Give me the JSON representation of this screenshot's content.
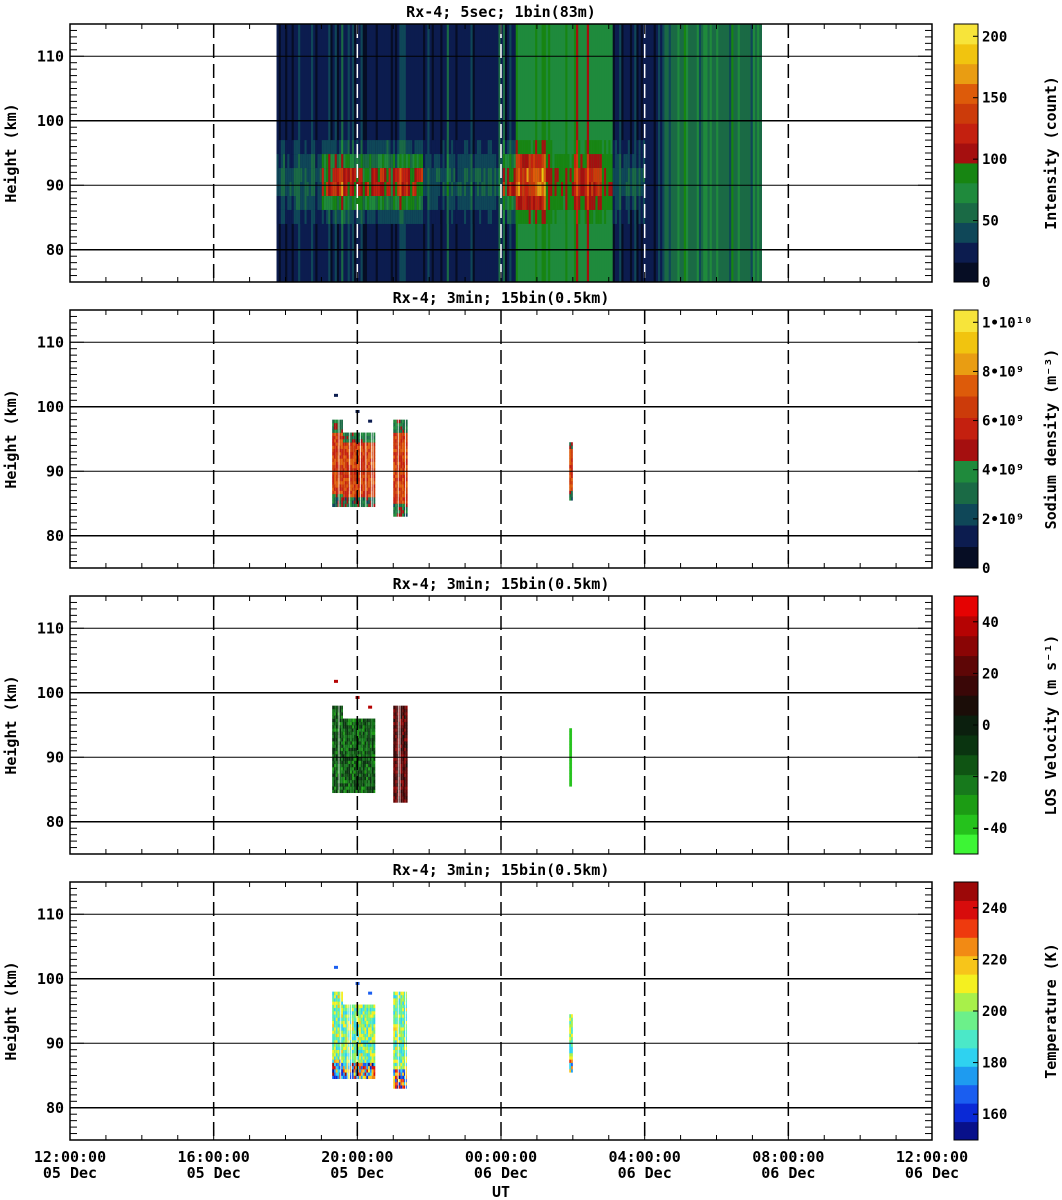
{
  "figure": {
    "xlabel": "UT"
  },
  "chart_data": [
    {
      "type": "heatmap",
      "title": "Rx-4;  5sec; 1bin(83m)",
      "xlabel": "UT",
      "ylabel": "Height (km)",
      "x_range_hours": [
        0,
        24
      ],
      "ylim": [
        75,
        115
      ],
      "x_ticks_labels": [
        [
          "12:00:00",
          "05 Dec"
        ],
        [
          "16:00:00",
          "05 Dec"
        ],
        [
          "20:00:00",
          "05 Dec"
        ],
        [
          "00:00:00",
          "06 Dec"
        ],
        [
          "04:00:00",
          "06 Dec"
        ],
        [
          "08:00:00",
          "06 Dec"
        ],
        [
          "12:00:00",
          "06 Dec"
        ]
      ],
      "y_ticks": [
        80,
        90,
        100,
        110
      ],
      "colorbar": {
        "label": "Intensity (count)",
        "range": [
          0,
          210
        ],
        "ticks": [
          "0",
          "50",
          "100",
          "150",
          "200"
        ],
        "tick_values": [
          0,
          50,
          100,
          150,
          200
        ],
        "colors": [
          "#060d24",
          "#0c1c4f",
          "#0f4758",
          "#1a6a45",
          "#1f8a3c",
          "#178512",
          "#a50f0f",
          "#c4200f",
          "#cc3b0a",
          "#dd5b0a",
          "#e99d12",
          "#f1c40f",
          "#f7e43a"
        ]
      },
      "data_coverage_hours": [
        5.75,
        19.2
      ],
      "green_block_hours": [
        12.4,
        15.1
      ],
      "layer_km": [
        84,
        97
      ]
    },
    {
      "type": "heatmap",
      "title": "Rx-4; 3min; 15bin(0.5km)",
      "xlabel": "UT",
      "ylabel": "Height (km)",
      "x_range_hours": [
        0,
        24
      ],
      "ylim": [
        75,
        115
      ],
      "y_ticks": [
        80,
        90,
        100,
        110
      ],
      "colorbar": {
        "label": "Sodium density (m⁻³)",
        "range": [
          0,
          10500000000.0
        ],
        "ticks": [
          "0",
          "2•10⁹",
          "4•10⁹",
          "6•10⁹",
          "8•10⁹",
          "1•10¹⁰"
        ],
        "tick_values": [
          0,
          2000000000.0,
          4000000000.0,
          6000000000.0,
          8000000000.0,
          10000000000.0
        ],
        "colors": [
          "#060d24",
          "#0c1c4f",
          "#0f4758",
          "#1a6a45",
          "#1f8a3c",
          "#a50f0f",
          "#c4200f",
          "#cc3b0a",
          "#dd5b0a",
          "#e99d12",
          "#f1c40f",
          "#f7e43a"
        ]
      },
      "data_blocks": [
        {
          "start_h": 7.3,
          "end_h": 7.6,
          "bottom_km": 84.5,
          "top_km": 98
        },
        {
          "start_h": 7.6,
          "end_h": 8.5,
          "bottom_km": 84.5,
          "top_km": 96
        },
        {
          "start_h": 9.0,
          "end_h": 9.4,
          "bottom_km": 83,
          "top_km": 98
        },
        {
          "start_h": 13.9,
          "end_h": 14.0,
          "bottom_km": 85.5,
          "top_km": 94.5
        }
      ]
    },
    {
      "type": "heatmap",
      "title": "Rx-4; 3min; 15bin(0.5km)",
      "xlabel": "UT",
      "ylabel": "Height (km)",
      "x_range_hours": [
        0,
        24
      ],
      "ylim": [
        75,
        115
      ],
      "y_ticks": [
        80,
        90,
        100,
        110
      ],
      "colorbar": {
        "label": "LOS Velocity (m s⁻¹)",
        "range": [
          -50,
          50
        ],
        "ticks": [
          "-40",
          "-20",
          "0",
          "20",
          "40"
        ],
        "tick_values": [
          -40,
          -20,
          0,
          20,
          40
        ],
        "colors": [
          "#3df535",
          "#25c21c",
          "#1c9c14",
          "#17791c",
          "#0f5413",
          "#0a3410",
          "#0b1f0e",
          "#1b0d08",
          "#3a0707",
          "#5e0606",
          "#8a0505",
          "#b50303",
          "#e50202"
        ]
      },
      "data_blocks": [
        {
          "start_h": 7.3,
          "end_h": 7.6,
          "bottom_km": 84.5,
          "top_km": 98
        },
        {
          "start_h": 7.6,
          "end_h": 8.5,
          "bottom_km": 84.5,
          "top_km": 96
        },
        {
          "start_h": 9.0,
          "end_h": 9.4,
          "bottom_km": 83,
          "top_km": 98
        },
        {
          "start_h": 13.9,
          "end_h": 14.0,
          "bottom_km": 85.5,
          "top_km": 94.5
        }
      ]
    },
    {
      "type": "heatmap",
      "title": "Rx-4; 3min; 15bin(0.5km)",
      "xlabel": "UT",
      "ylabel": "Height (km)",
      "x_range_hours": [
        0,
        24
      ],
      "ylim": [
        75,
        115
      ],
      "y_ticks": [
        80,
        90,
        100,
        110
      ],
      "colorbar": {
        "label": "Temperature (K)",
        "range": [
          150,
          250
        ],
        "ticks": [
          "160",
          "180",
          "200",
          "220",
          "240"
        ],
        "tick_values": [
          160,
          180,
          200,
          220,
          240
        ],
        "colors": [
          "#08108a",
          "#0a29d6",
          "#1a5ef0",
          "#1e9bf0",
          "#2fd2f0",
          "#4be8c8",
          "#6cf08a",
          "#a8f04a",
          "#f4f020",
          "#f7c51a",
          "#f28a14",
          "#ee3a0e",
          "#d80c0c",
          "#9c0808"
        ]
      },
      "data_blocks": [
        {
          "start_h": 7.3,
          "end_h": 7.6,
          "bottom_km": 84.5,
          "top_km": 98
        },
        {
          "start_h": 7.6,
          "end_h": 8.5,
          "bottom_km": 84.5,
          "top_km": 96
        },
        {
          "start_h": 9.0,
          "end_h": 9.4,
          "bottom_km": 83,
          "top_km": 98
        },
        {
          "start_h": 13.9,
          "end_h": 14.0,
          "bottom_km": 85.5,
          "top_km": 94.5
        }
      ]
    }
  ]
}
